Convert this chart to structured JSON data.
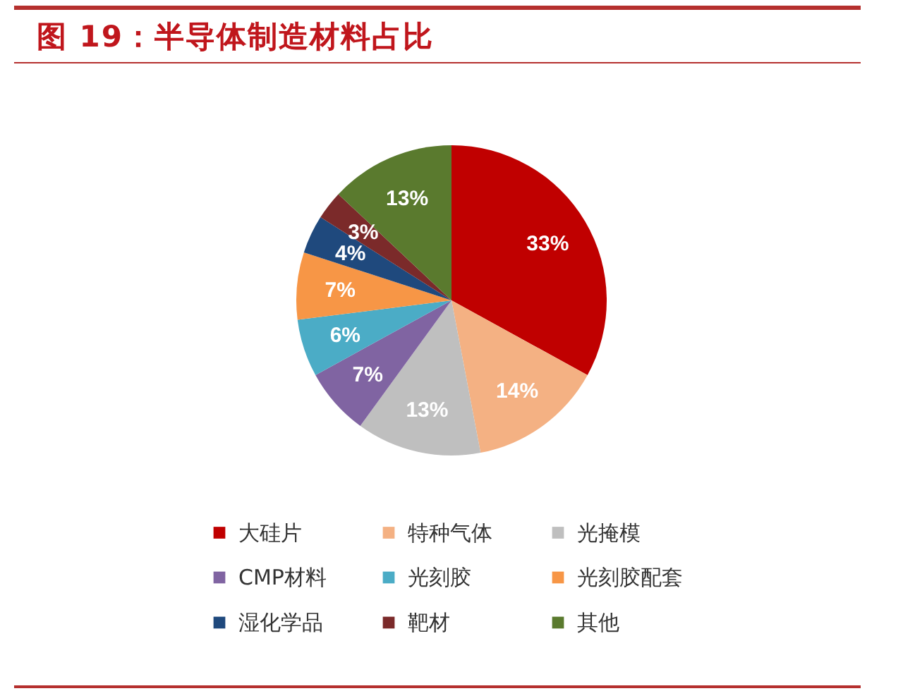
{
  "chart_data": {
    "type": "pie",
    "title": "图 19：半导体制造材料占比",
    "categories": [
      "大硅片",
      "特种气体",
      "光掩模",
      "CMP材料",
      "光刻胶",
      "光刻胶配套",
      "湿化学品",
      "靶材",
      "其他"
    ],
    "values": [
      33,
      14,
      13,
      7,
      6,
      7,
      4,
      3,
      13
    ],
    "value_labels": [
      "33%",
      "14%",
      "13%",
      "7%",
      "6%",
      "7%",
      "4%",
      "3%",
      "13%"
    ],
    "colors": [
      "#c00000",
      "#f4b183",
      "#bfbfbf",
      "#8064a2",
      "#4bacc6",
      "#f79646",
      "#1f497d",
      "#7b2a2a",
      "#5a7a2e"
    ],
    "legend": "bottom"
  }
}
